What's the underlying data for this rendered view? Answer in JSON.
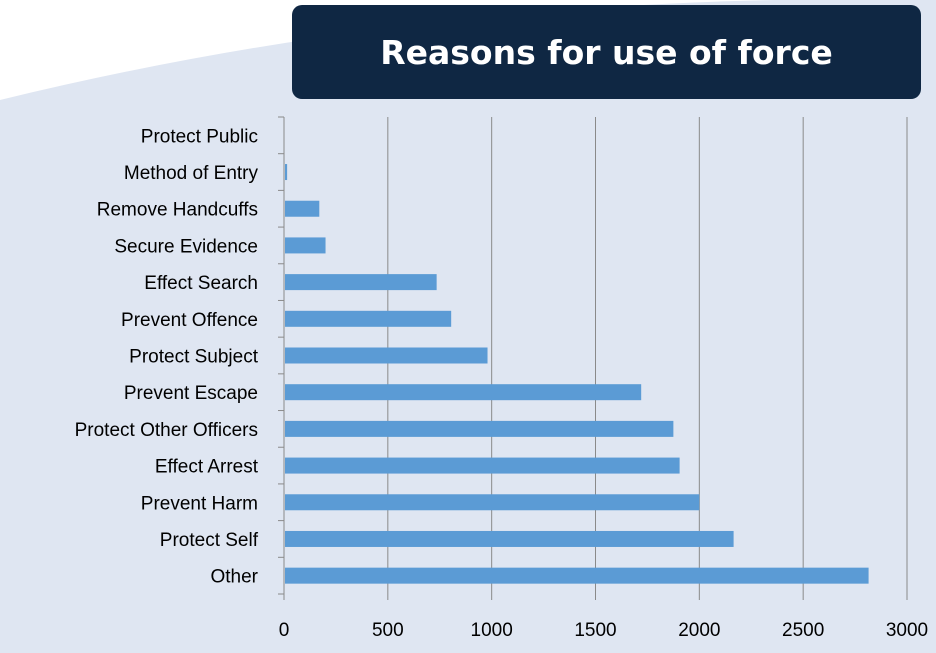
{
  "chart_data": {
    "type": "bar",
    "orientation": "horizontal",
    "title": "Reasons for use of force",
    "categories": [
      "Protect Public",
      "Method of Entry",
      "Remove Handcuffs",
      "Secure Evidence",
      "Effect Search",
      "Prevent Offence",
      "Protect Subject",
      "Prevent Escape",
      "Protect Other Officers",
      "Effect Arrest",
      "Prevent Harm",
      "Protect Self",
      "Other"
    ],
    "values": [
      0,
      15,
      170,
      200,
      735,
      805,
      980,
      1720,
      1875,
      1905,
      2000,
      2165,
      2815
    ],
    "xlim": [
      0,
      3000
    ],
    "x_ticks": [
      "0",
      "500",
      "1000",
      "1500",
      "2000",
      "2500",
      "3000"
    ],
    "grid": "vertical",
    "colors": {
      "bar": "#5b9bd5",
      "title_bg": "#0f2743",
      "panel_bg": "#dfe6f2"
    }
  }
}
